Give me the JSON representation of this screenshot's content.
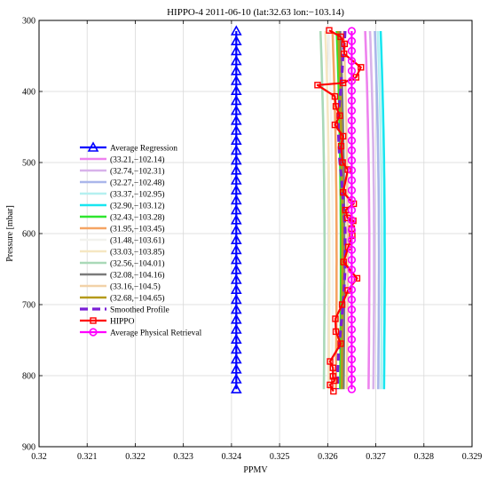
{
  "chart_data": {
    "type": "line",
    "title": "HIPPO-4 2011-06-10 (lat:32.63  lon:−103.14)",
    "xlabel": "PPMV",
    "ylabel": "Pressure [mbar]",
    "xlim": [
      0.32,
      0.329
    ],
    "ylim": [
      300,
      900
    ],
    "y_reversed": true,
    "grid": true,
    "legend_position": "left",
    "x_ticks": [
      0.32,
      0.321,
      0.322,
      0.323,
      0.324,
      0.325,
      0.326,
      0.327,
      0.328,
      0.329
    ],
    "x_tick_labels": [
      "0.32",
      "0.321",
      "0.322",
      "0.323",
      "0.324",
      "0.325",
      "0.326",
      "0.327",
      "0.328",
      "0.329"
    ],
    "y_ticks": [
      300,
      400,
      500,
      600,
      700,
      800,
      900
    ],
    "y_tick_labels": [
      "300",
      "400",
      "500",
      "600",
      "700",
      "800",
      "900"
    ],
    "pressure_levels": [
      315,
      329,
      343,
      357,
      371,
      385,
      399,
      413,
      427,
      441,
      455,
      469,
      483,
      497,
      511,
      525,
      539,
      553,
      567,
      581,
      595,
      609,
      623,
      637,
      651,
      665,
      679,
      693,
      707,
      721,
      735,
      749,
      763,
      777,
      791,
      805,
      819
    ],
    "series": [
      {
        "name": "Average Regression",
        "color": "#0000ff",
        "style": "line-marker",
        "marker": "triangle",
        "x": [
          0.3241
        ],
        "y_mode": "levels"
      },
      {
        "name": "(33.21,−102.14)",
        "color": "#ee82ee",
        "style": "curve",
        "x_base": 0.32685
      },
      {
        "name": "(32.74,−102.31)",
        "color": "#d8b2ea",
        "style": "curve",
        "x_base": 0.32695
      },
      {
        "name": "(32.27,−102.48)",
        "color": "#aab6ea",
        "style": "curve",
        "x_base": 0.32705
      },
      {
        "name": "(33.37,−102.95)",
        "color": "#b5f0f0",
        "style": "curve",
        "x_base": 0.32711
      },
      {
        "name": "(32.90,−103.12)",
        "color": "#18e6f0",
        "style": "curve",
        "x_base": 0.32717
      },
      {
        "name": "(32.43,−103.28)",
        "color": "#2ee62e",
        "style": "curve",
        "x_base": 0.32626
      },
      {
        "name": "(31.95,−103.45)",
        "color": "#f5a463",
        "style": "curve",
        "x_base": 0.32617
      },
      {
        "name": "(31.48,−103.61)",
        "color": "#f2f2ee",
        "style": "curve",
        "x_base": 0.32609
      },
      {
        "name": "(33.03,−103.85)",
        "color": "#f6e7c2",
        "style": "curve",
        "x_base": 0.32602
      },
      {
        "name": "(32.56,−104.01)",
        "color": "#a9d9b8",
        "style": "curve",
        "x_base": 0.32592
      },
      {
        "name": "(32.08,−104.16)",
        "color": "#7a7a7a",
        "style": "curve",
        "x_base": 0.32633
      },
      {
        "name": "(33.16,−104.5)",
        "color": "#f2d2a8",
        "style": "curve",
        "x_base": 0.3264
      },
      {
        "name": "(32.68,−104.65)",
        "color": "#b59a1a",
        "style": "curve",
        "x_base": 0.32629
      },
      {
        "name": "Smoothed Profile",
        "color": "#7a1fd6",
        "style": "dashed",
        "x": [
          0.32636,
          0.32635,
          0.32633,
          0.32631,
          0.3263,
          0.32628,
          0.32627,
          0.32625,
          0.32623,
          0.32622,
          0.32622,
          0.32623,
          0.32624,
          0.32625,
          0.32627,
          0.32629,
          0.3263,
          0.32632,
          0.32633,
          0.32635,
          0.32636,
          0.32636,
          0.32636,
          0.32636,
          0.32636,
          0.32635,
          0.32634,
          0.32633,
          0.32631,
          0.32629,
          0.32627,
          0.32625,
          0.32623,
          0.32622,
          0.32621,
          0.32621,
          0.32621
        ],
        "y": [
          315,
          329,
          343,
          357,
          371,
          385,
          399,
          413,
          427,
          441,
          455,
          469,
          483,
          497,
          511,
          525,
          539,
          553,
          567,
          581,
          595,
          609,
          623,
          637,
          651,
          665,
          679,
          693,
          707,
          721,
          735,
          749,
          763,
          777,
          791,
          805,
          819
        ]
      },
      {
        "name": "HIPPO",
        "color": "#ff0000",
        "style": "line-marker",
        "marker": "square",
        "x": [
          0.32603,
          0.32627,
          0.32635,
          0.32634,
          0.32669,
          0.32659,
          0.32632,
          0.32579,
          0.32615,
          0.32617,
          0.32625,
          0.32615,
          0.32632,
          0.32628,
          0.32631,
          0.32642,
          0.32632,
          0.32654,
          0.32637,
          0.32641,
          0.32653,
          0.3265,
          0.32651,
          0.32643,
          0.32633,
          0.32661,
          0.32642,
          0.3263,
          0.32616,
          0.32617,
          0.32627,
          0.32605,
          0.32611,
          0.32611,
          0.32614,
          0.32605,
          0.32612
        ],
        "y": [
          314,
          323,
          333,
          347,
          366,
          380,
          388,
          391,
          407,
          421,
          434,
          447,
          463,
          477,
          500,
          510,
          542,
          558,
          567,
          578,
          582,
          593,
          603,
          619,
          640,
          663,
          680,
          700,
          720,
          738,
          755,
          780,
          789,
          801,
          807,
          813,
          822
        ]
      },
      {
        "name": "Average Physical Retrieval",
        "color": "#ff00ff",
        "style": "line-marker",
        "marker": "circle",
        "x": [
          0.3265
        ],
        "y_mode": "levels"
      }
    ]
  }
}
